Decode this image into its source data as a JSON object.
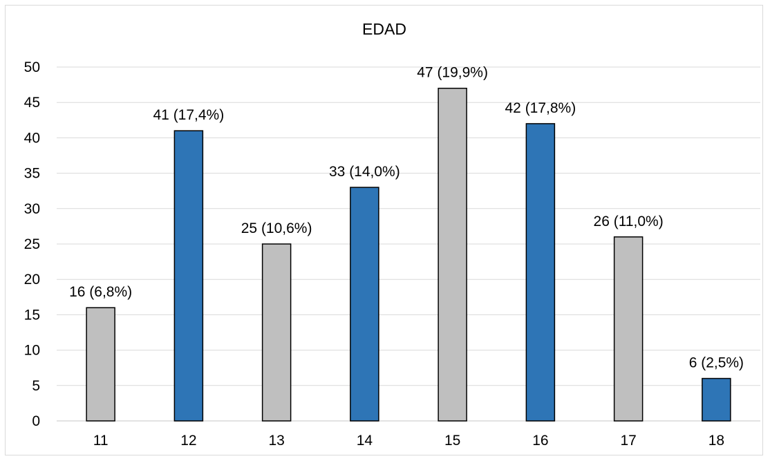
{
  "chart_data": {
    "type": "bar",
    "title": "EDAD",
    "xlabel": "",
    "ylabel": "",
    "categories": [
      "11",
      "12",
      "13",
      "14",
      "15",
      "16",
      "17",
      "18"
    ],
    "values": [
      16,
      41,
      25,
      33,
      47,
      42,
      26,
      6
    ],
    "data_labels": [
      "16 (6,8%)",
      "41 (17,4%)",
      "25 (10,6%)",
      "33 (14,0%)",
      "47 (19,9%)",
      "42 (17,8%)",
      "26 (11,0%)",
      "6 (2,5%)"
    ],
    "bar_colors": [
      "#bfbfbf",
      "#2e75b6",
      "#bfbfbf",
      "#2e75b6",
      "#bfbfbf",
      "#2e75b6",
      "#bfbfbf",
      "#2e75b6"
    ],
    "ylim": [
      0,
      50
    ],
    "yticks": [
      0,
      5,
      10,
      15,
      20,
      25,
      30,
      35,
      40,
      45,
      50
    ],
    "grid": true,
    "legend": "none"
  }
}
